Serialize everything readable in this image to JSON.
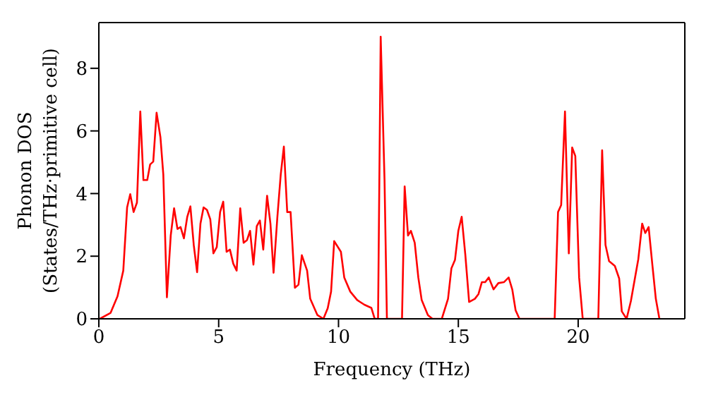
{
  "chart_data": {
    "type": "line",
    "xlabel": "Frequency (THz)",
    "ylabel": "Phonon DOS\n(States/THz·primitive cell)",
    "xlim": [
      0,
      24.45
    ],
    "ylim": [
      0,
      9.46
    ],
    "xticks": [
      0,
      5,
      10,
      15,
      20
    ],
    "yticks": [
      0,
      2,
      4,
      6,
      8
    ],
    "marker": "none",
    "line_style": "solid",
    "series": [
      {
        "color": "#ff0000",
        "x": [
          0.04,
          0.49,
          0.78,
          1.02,
          1.18,
          1.31,
          1.45,
          1.59,
          1.73,
          1.86,
          2.02,
          2.14,
          2.27,
          2.41,
          2.57,
          2.69,
          2.84,
          3.0,
          3.14,
          3.28,
          3.41,
          3.55,
          3.69,
          3.82,
          3.96,
          4.1,
          4.24,
          4.37,
          4.51,
          4.65,
          4.78,
          4.92,
          5.06,
          5.19,
          5.33,
          5.47,
          5.61,
          5.75,
          5.9,
          6.04,
          6.18,
          6.31,
          6.45,
          6.59,
          6.72,
          6.86,
          7.02,
          7.16,
          7.29,
          7.45,
          7.59,
          7.72,
          7.86,
          8.0,
          8.18,
          8.33,
          8.47,
          8.69,
          8.82,
          9.12,
          9.37,
          9.55,
          9.69,
          9.82,
          10.1,
          10.24,
          10.49,
          10.78,
          11.08,
          11.37,
          11.51,
          11.65,
          11.76,
          11.92,
          12.02,
          12.65,
          12.76,
          12.9,
          13.02,
          13.18,
          13.33,
          13.47,
          13.73,
          13.92,
          14.31,
          14.57,
          14.71,
          14.86,
          15.0,
          15.14,
          15.29,
          15.45,
          15.69,
          15.84,
          15.98,
          16.12,
          16.27,
          16.47,
          16.67,
          16.9,
          17.1,
          17.25,
          17.39,
          17.55,
          19.02,
          19.16,
          19.29,
          19.45,
          19.61,
          19.75,
          19.88,
          20.04,
          20.19,
          20.84,
          21.0,
          21.14,
          21.29,
          21.53,
          21.71,
          21.82,
          22.02,
          22.2,
          22.51,
          22.67,
          22.8,
          22.94,
          23.1,
          23.24,
          23.39
        ],
        "values": [
          0,
          0.19,
          0.72,
          1.54,
          3.56,
          3.98,
          3.41,
          3.71,
          6.62,
          4.43,
          4.43,
          4.93,
          5.02,
          6.58,
          5.8,
          4.61,
          0.69,
          2.66,
          3.53,
          2.87,
          2.93,
          2.57,
          3.26,
          3.59,
          2.36,
          1.49,
          3.04,
          3.56,
          3.48,
          3.18,
          2.09,
          2.29,
          3.41,
          3.74,
          2.14,
          2.21,
          1.76,
          1.54,
          3.53,
          2.43,
          2.51,
          2.81,
          1.73,
          2.96,
          3.14,
          2.21,
          3.93,
          3.04,
          1.47,
          3.26,
          4.61,
          5.5,
          3.41,
          3.41,
          0.99,
          1.09,
          2.03,
          1.54,
          0.64,
          0.12,
          0,
          0.34,
          0.87,
          2.48,
          2.14,
          1.32,
          0.87,
          0.6,
          0.45,
          0.35,
          0,
          0,
          9.01,
          4.45,
          0,
          0,
          4.23,
          2.66,
          2.81,
          2.43,
          1.32,
          0.6,
          0.12,
          0,
          0,
          0.64,
          1.61,
          1.88,
          2.81,
          3.26,
          2.06,
          0.54,
          0.64,
          0.79,
          1.17,
          1.17,
          1.32,
          0.94,
          1.14,
          1.17,
          1.32,
          0.94,
          0.27,
          0,
          0,
          3.41,
          3.63,
          6.62,
          2.09,
          5.47,
          5.2,
          1.32,
          0,
          0,
          5.38,
          2.36,
          1.84,
          1.69,
          1.29,
          0.24,
          0,
          0.57,
          1.91,
          3.04,
          2.74,
          2.93,
          1.69,
          0.64,
          0
        ]
      }
    ]
  }
}
